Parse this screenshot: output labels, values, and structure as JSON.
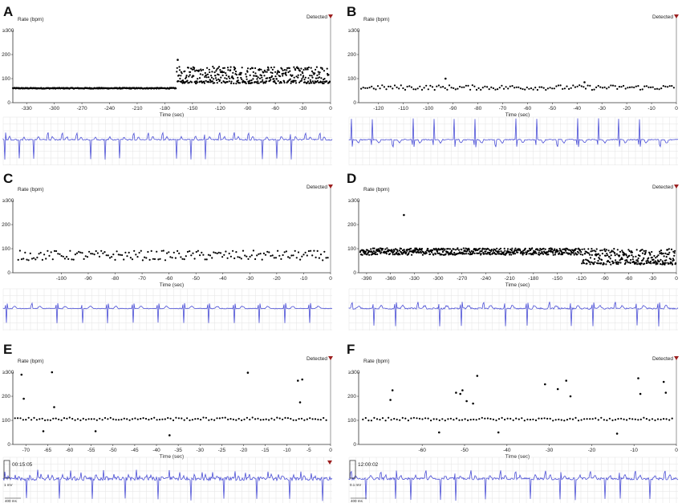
{
  "chart_data": [
    {
      "panel": "A",
      "type": "scatter",
      "xlabel": "Time (sec)",
      "ylabel": "Rate (bpm)",
      "ytop_label": "≥300",
      "marker_label": "Detected",
      "xlim": [
        -345,
        0
      ],
      "ylim": [
        0,
        300
      ],
      "yticks": [
        0,
        100,
        200
      ],
      "xticks": [
        -330,
        -300,
        -270,
        -240,
        -210,
        -180,
        -150,
        -120,
        -90,
        -60,
        -30,
        0
      ],
      "segments": [
        {
          "x_start": -345,
          "x_end": -168,
          "n": 330,
          "base": 60,
          "jitter": 2,
          "spikes": []
        },
        {
          "x_start": -167,
          "x_end": -1,
          "n": 420,
          "base": 118,
          "jitter": 32,
          "spikes": [
            {
              "x": -166,
              "y": 178
            }
          ]
        }
      ],
      "ecg": {
        "beats": 23,
        "inverted": true,
        "amp": 24,
        "noise": 0.8
      }
    },
    {
      "panel": "B",
      "type": "scatter",
      "xlabel": "Time (sec)",
      "ylabel": "Rate (bpm)",
      "ytop_label": "≥300",
      "marker_label": "Detected",
      "xlim": [
        -128,
        0
      ],
      "ylim": [
        0,
        300
      ],
      "yticks": [
        0,
        100,
        200
      ],
      "xticks": [
        -120,
        -110,
        -100,
        -90,
        -80,
        -70,
        -60,
        -50,
        -40,
        -30,
        -20,
        -10,
        0
      ],
      "segments": [
        {
          "x_start": -127,
          "x_end": -1,
          "n": 150,
          "base": 63,
          "jitter": 10,
          "spikes": [
            {
              "x": -93,
              "y": 100
            },
            {
              "x": -37,
              "y": 85
            }
          ]
        }
      ],
      "ecg": {
        "beats": 16,
        "inverted": false,
        "amp": 26,
        "noise": 0.6
      }
    },
    {
      "panel": "C",
      "type": "scatter",
      "xlabel": "Time (sec)",
      "ylabel": "Rate (bpm)",
      "ytop_label": "≥300",
      "marker_label": "Detected",
      "xlim": [
        -118,
        0
      ],
      "ylim": [
        0,
        300
      ],
      "yticks": [
        0,
        100,
        200
      ],
      "xticks": [
        -100,
        -90,
        -80,
        -70,
        -60,
        -50,
        -40,
        -30,
        -20,
        -10,
        0
      ],
      "segments": [
        {
          "x_start": -116,
          "x_end": -1,
          "n": 180,
          "base": 72,
          "jitter": 20,
          "spikes": []
        }
      ],
      "ecg": {
        "beats": 13,
        "inverted": true,
        "amp": 18,
        "noise": 0.4
      }
    },
    {
      "panel": "D",
      "type": "scatter",
      "xlabel": "Time (sec)",
      "ylabel": "Rate (bpm)",
      "ytop_label": "≥300",
      "marker_label": "Detected",
      "xlim": [
        -400,
        0
      ],
      "ylim": [
        0,
        300
      ],
      "yticks": [
        0,
        100,
        200
      ],
      "xticks": [
        -390,
        -360,
        -330,
        -300,
        -270,
        -240,
        -210,
        -180,
        -150,
        -120,
        -90,
        -60,
        -30,
        0
      ],
      "segments": [
        {
          "x_start": -398,
          "x_end": -120,
          "n": 520,
          "base": 88,
          "jitter": 14,
          "spikes": [
            {
              "x": -343,
              "y": 240
            }
          ]
        },
        {
          "x_start": -119,
          "x_end": -1,
          "n": 260,
          "base": 70,
          "jitter": 30,
          "spikes": []
        }
      ],
      "ecg": {
        "beats": 15,
        "inverted": true,
        "amp": 22,
        "noise": 0.9
      }
    },
    {
      "panel": "E",
      "type": "scatter",
      "xlabel": "Time (sec)",
      "ylabel": "Rate (bpm)",
      "ytop_label": "≥300",
      "marker_label": "Detected",
      "xlim": [
        -73,
        0
      ],
      "ylim": [
        0,
        300
      ],
      "yticks": [
        0,
        100,
        200
      ],
      "xticks": [
        -70,
        -65,
        -60,
        -55,
        -50,
        -45,
        -40,
        -35,
        -30,
        -25,
        -20,
        -15,
        -10,
        -5,
        0
      ],
      "segments": [
        {
          "x_start": -72.5,
          "x_end": -1,
          "n": 115,
          "base": 106,
          "jitter": 6,
          "spikes": [
            {
              "x": -71,
              "y": 290
            },
            {
              "x": -70.5,
              "y": 190
            },
            {
              "x": -64,
              "y": 300
            },
            {
              "x": -63.5,
              "y": 155
            },
            {
              "x": -19,
              "y": 298
            },
            {
              "x": -7.5,
              "y": 265
            },
            {
              "x": -6.5,
              "y": 270
            },
            {
              "x": -7,
              "y": 175
            },
            {
              "x": -37,
              "y": 38
            },
            {
              "x": -66,
              "y": 55
            },
            {
              "x": -54,
              "y": 55
            }
          ]
        }
      ],
      "ecg": {
        "beats": 30,
        "inverted": true,
        "amp": 26,
        "noise": 2.2,
        "timestamp": "00:15:05",
        "scale_mv": "1 mV",
        "scale_ms": "400 ms"
      }
    },
    {
      "panel": "F",
      "type": "scatter",
      "xlabel": "Time (sec)",
      "ylabel": "Rate (bpm)",
      "ytop_label": "≥300",
      "marker_label": "Detected",
      "xlim": [
        -75,
        0
      ],
      "ylim": [
        0,
        300
      ],
      "yticks": [
        0,
        100,
        200
      ],
      "xticks": [
        -60,
        -50,
        -40,
        -30,
        -20,
        -10,
        0
      ],
      "segments": [
        {
          "x_start": -74,
          "x_end": -1,
          "n": 110,
          "base": 105,
          "jitter": 6,
          "spikes": [
            {
              "x": -67,
              "y": 225
            },
            {
              "x": -67.5,
              "y": 185
            },
            {
              "x": -51,
              "y": 210
            },
            {
              "x": -50.5,
              "y": 225
            },
            {
              "x": -52,
              "y": 215
            },
            {
              "x": -49.5,
              "y": 180
            },
            {
              "x": -48,
              "y": 170
            },
            {
              "x": -47,
              "y": 285
            },
            {
              "x": -31,
              "y": 250
            },
            {
              "x": -28,
              "y": 230
            },
            {
              "x": -26,
              "y": 265
            },
            {
              "x": -25,
              "y": 200
            },
            {
              "x": -9,
              "y": 275
            },
            {
              "x": -8.5,
              "y": 210
            },
            {
              "x": -3,
              "y": 260
            },
            {
              "x": -2.5,
              "y": 215
            },
            {
              "x": -56,
              "y": 50
            },
            {
              "x": -42,
              "y": 50
            },
            {
              "x": -14,
              "y": 45
            }
          ]
        }
      ],
      "ecg": {
        "beats": 22,
        "inverted": true,
        "amp": 26,
        "noise": 1.4,
        "timestamp": "12:00:02",
        "scale_mv": "0.1 mV",
        "scale_ms": "400 ms"
      }
    }
  ]
}
